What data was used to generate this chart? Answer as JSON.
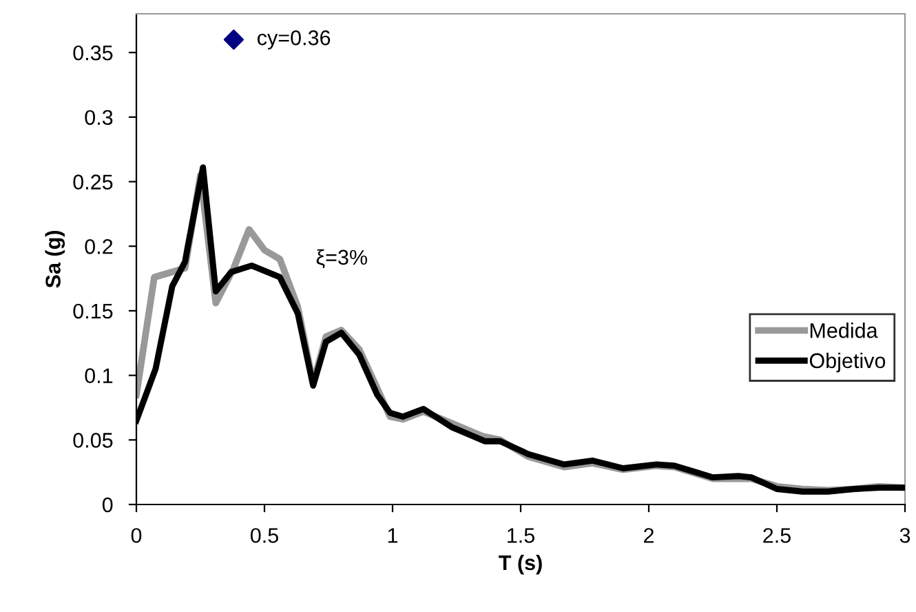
{
  "chart_data": {
    "type": "line",
    "xlabel": "T (s)",
    "ylabel": "Sa (g)",
    "xlim": [
      0,
      3
    ],
    "xticks": [
      0,
      0.5,
      1,
      1.5,
      2,
      2.5,
      3
    ],
    "ylim": [
      0,
      0.38
    ],
    "yticks": [
      0,
      0.05,
      0.1,
      0.15,
      0.2,
      0.25,
      0.3,
      0.35
    ],
    "grid": false,
    "legend": "right",
    "annotations": [
      {
        "text": "cy=0.36",
        "x": 0.38,
        "y": 0.36
      },
      "ξ=3%"
    ],
    "series": [
      {
        "name": "Medida",
        "color": "#999999",
        "x": [
          0,
          0.07,
          0.19,
          0.25,
          0.31,
          0.38,
          0.44,
          0.5,
          0.56,
          0.63,
          0.69,
          0.74,
          0.8,
          0.87,
          0.94,
          0.99,
          1.04,
          1.12,
          1.23,
          1.35,
          1.42,
          1.53,
          1.67,
          1.78,
          1.9,
          2.03,
          2.1,
          2.25,
          2.35,
          2.4,
          2.5,
          2.6,
          2.7,
          2.8,
          2.9,
          3.0
        ],
        "values": [
          0.085,
          0.176,
          0.183,
          0.255,
          0.156,
          0.183,
          0.213,
          0.197,
          0.19,
          0.153,
          0.094,
          0.13,
          0.135,
          0.12,
          0.09,
          0.068,
          0.066,
          0.072,
          0.063,
          0.053,
          0.05,
          0.037,
          0.029,
          0.032,
          0.027,
          0.03,
          0.029,
          0.02,
          0.02,
          0.02,
          0.014,
          0.012,
          0.011,
          0.012,
          0.014,
          0.013
        ]
      },
      {
        "name": "Objetivo",
        "color": "#000000",
        "x": [
          0,
          0.075,
          0.14,
          0.19,
          0.2,
          0.26,
          0.31,
          0.37,
          0.45,
          0.56,
          0.63,
          0.69,
          0.74,
          0.8,
          0.87,
          0.94,
          0.99,
          1.04,
          1.12,
          1.23,
          1.36,
          1.42,
          1.53,
          1.67,
          1.78,
          1.9,
          2.03,
          2.1,
          2.25,
          2.35,
          2.4,
          2.5,
          2.6,
          2.7,
          2.8,
          2.9,
          3.0
        ],
        "values": [
          0.065,
          0.105,
          0.169,
          0.188,
          0.199,
          0.261,
          0.165,
          0.18,
          0.185,
          0.176,
          0.148,
          0.092,
          0.126,
          0.133,
          0.116,
          0.085,
          0.071,
          0.068,
          0.074,
          0.06,
          0.049,
          0.049,
          0.039,
          0.031,
          0.034,
          0.028,
          0.031,
          0.03,
          0.021,
          0.022,
          0.021,
          0.012,
          0.01,
          0.01,
          0.012,
          0.013,
          0.013
        ]
      },
      {
        "type": "scatter",
        "color": "#000080",
        "marker": "diamond",
        "x": [
          0.38
        ],
        "values": [
          0.36
        ]
      }
    ]
  }
}
